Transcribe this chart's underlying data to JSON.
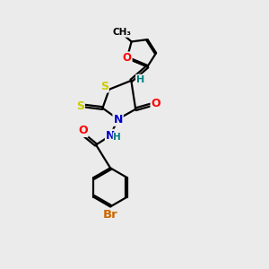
{
  "bg_color": "#ebebeb",
  "bond_color": "#000000",
  "bond_width": 1.6,
  "atom_colors": {
    "C": "#000000",
    "N": "#0000cc",
    "O": "#ff0000",
    "S": "#cccc00",
    "Br": "#cc6600",
    "H": "#008080"
  },
  "figsize": [
    3.0,
    3.0
  ],
  "dpi": 100
}
